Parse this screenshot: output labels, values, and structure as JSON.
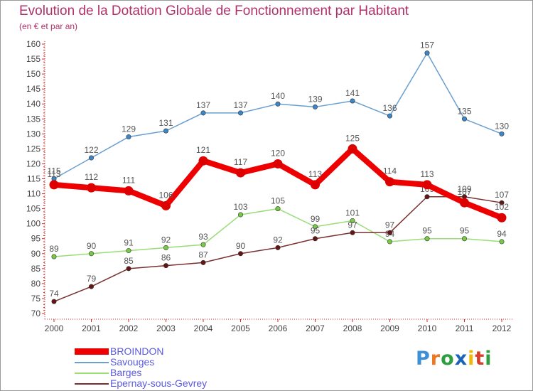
{
  "chart_data": {
    "type": "line",
    "title": "Evolution de la Dotation Globale de Fonctionnement par Habitant",
    "subtitle": "(en € et par an)",
    "xlabel": "",
    "ylabel": "",
    "ylim": [
      70,
      160
    ],
    "ytick_step": 5,
    "categories": [
      "2000",
      "2001",
      "2002",
      "2003",
      "2004",
      "2005",
      "2006",
      "2007",
      "2008",
      "2009",
      "2010",
      "2011",
      "2012"
    ],
    "series": [
      {
        "name": "Savouges",
        "color": "#6a9fd0",
        "marker": "#3d86c8",
        "values": [
          115,
          122,
          129,
          131,
          137,
          137,
          140,
          139,
          141,
          136,
          157,
          135,
          130
        ]
      },
      {
        "name": "Barges",
        "color": "#99dd77",
        "marker": "#77cc44",
        "values": [
          89,
          90,
          91,
          92,
          93,
          103,
          105,
          99,
          101,
          94,
          95,
          95,
          94
        ]
      },
      {
        "name": "Epernay-sous-Gevrey",
        "color": "#7a3030",
        "marker": "#661414",
        "values": [
          74,
          79,
          85,
          86,
          87,
          90,
          92,
          95,
          97,
          97,
          109,
          109,
          107
        ]
      },
      {
        "name": "BROINDON",
        "color": "#ee0000",
        "marker": "#dd0000",
        "values": [
          113,
          112,
          111,
          106,
          121,
          117,
          120,
          113,
          125,
          114,
          113,
          107,
          102
        ]
      }
    ],
    "legend": [
      {
        "name": "BROINDON",
        "color": "#ee0000"
      },
      {
        "name": "Savouges",
        "color": "#6a9fd0"
      },
      {
        "name": "Barges",
        "color": "#99dd77"
      },
      {
        "name": "Epernay-sous-Gevrey",
        "color": "#7a3030"
      }
    ],
    "grid": false,
    "legend_position": "bottom-left"
  },
  "logo": {
    "letters": [
      "P",
      "r",
      "o",
      "x",
      "i",
      "t",
      "i"
    ],
    "colors": [
      "#3d8fd6",
      "#ee7722",
      "#2e9e3e",
      "#1a64b8",
      "#f2b705",
      "#d6402a",
      "#2e9e3e"
    ]
  }
}
